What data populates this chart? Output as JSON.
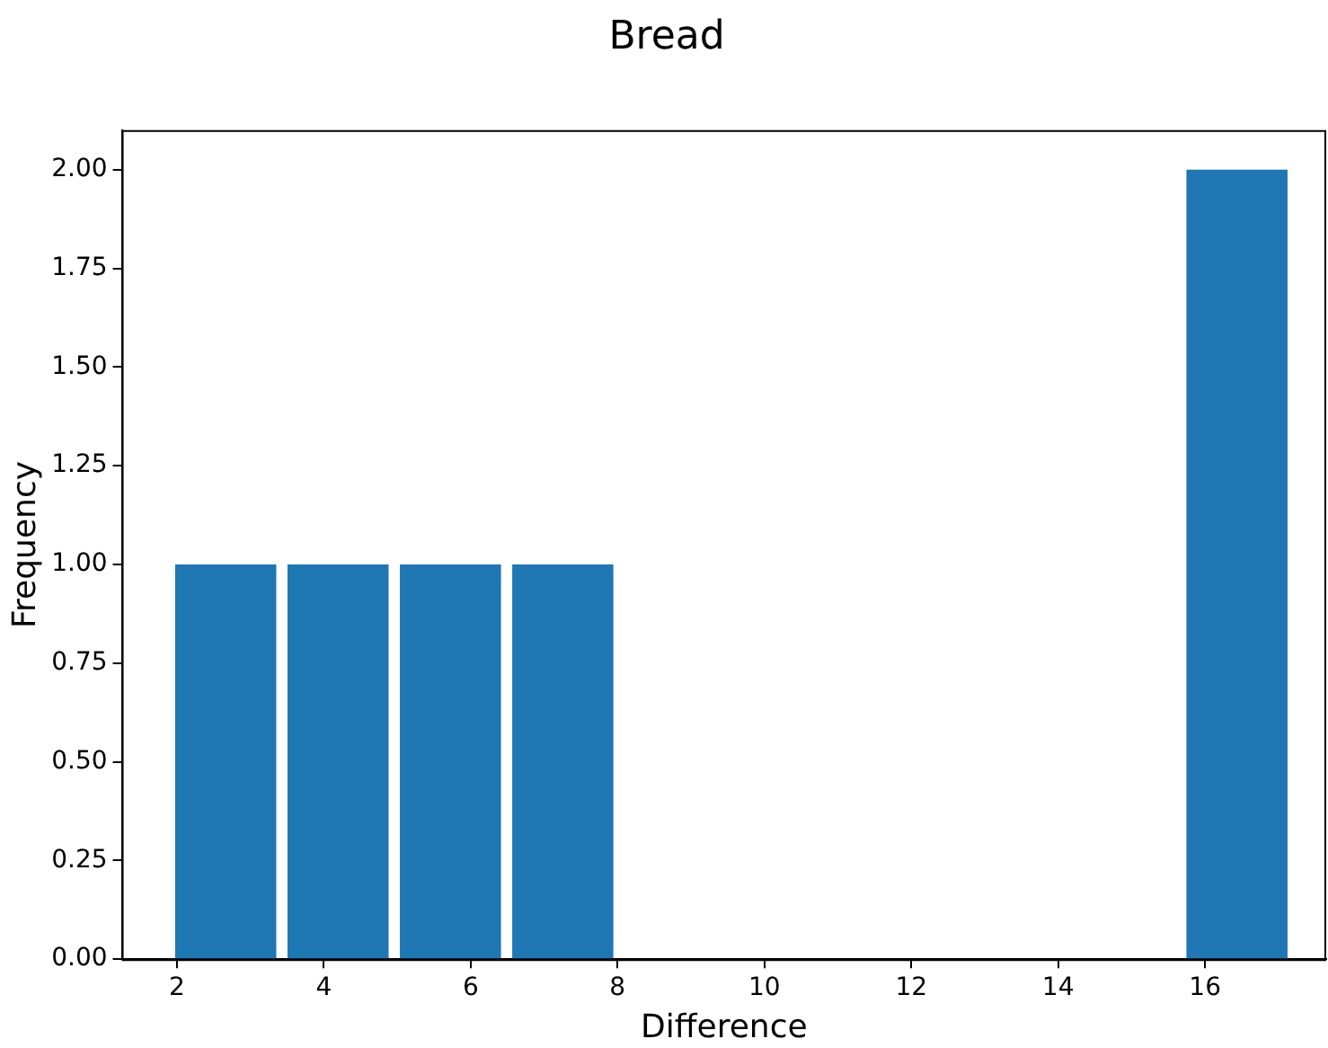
{
  "chart_data": {
    "type": "histogram",
    "title": "Bread",
    "xlabel": "Difference",
    "ylabel": "Frequency",
    "bins": [
      1.9,
      3.43,
      4.96,
      6.49,
      8.02,
      9.55,
      11.08,
      12.61,
      14.14,
      15.67,
      17.2
    ],
    "values": [
      1,
      1,
      1,
      1,
      0,
      0,
      0,
      0,
      0,
      2
    ],
    "color": "#1f77b4",
    "xlim": [
      1.25,
      17.65
    ],
    "xticks": [
      2,
      4,
      6,
      8,
      10,
      12,
      14,
      16
    ],
    "ylim": [
      0,
      2.1
    ],
    "yticks": [
      {
        "value": 0,
        "label": "0.00"
      },
      {
        "value": 0.25,
        "label": "0.25"
      },
      {
        "value": 0.5,
        "label": "0.50"
      },
      {
        "value": 0.75,
        "label": "0.75"
      },
      {
        "value": 1,
        "label": "1.00"
      },
      {
        "value": 1.25,
        "label": "1.25"
      },
      {
        "value": 1.5,
        "label": "1.50"
      },
      {
        "value": 1.75,
        "label": "1.75"
      },
      {
        "value": 2,
        "label": "2.00"
      }
    ],
    "grid": false,
    "legend": false
  }
}
